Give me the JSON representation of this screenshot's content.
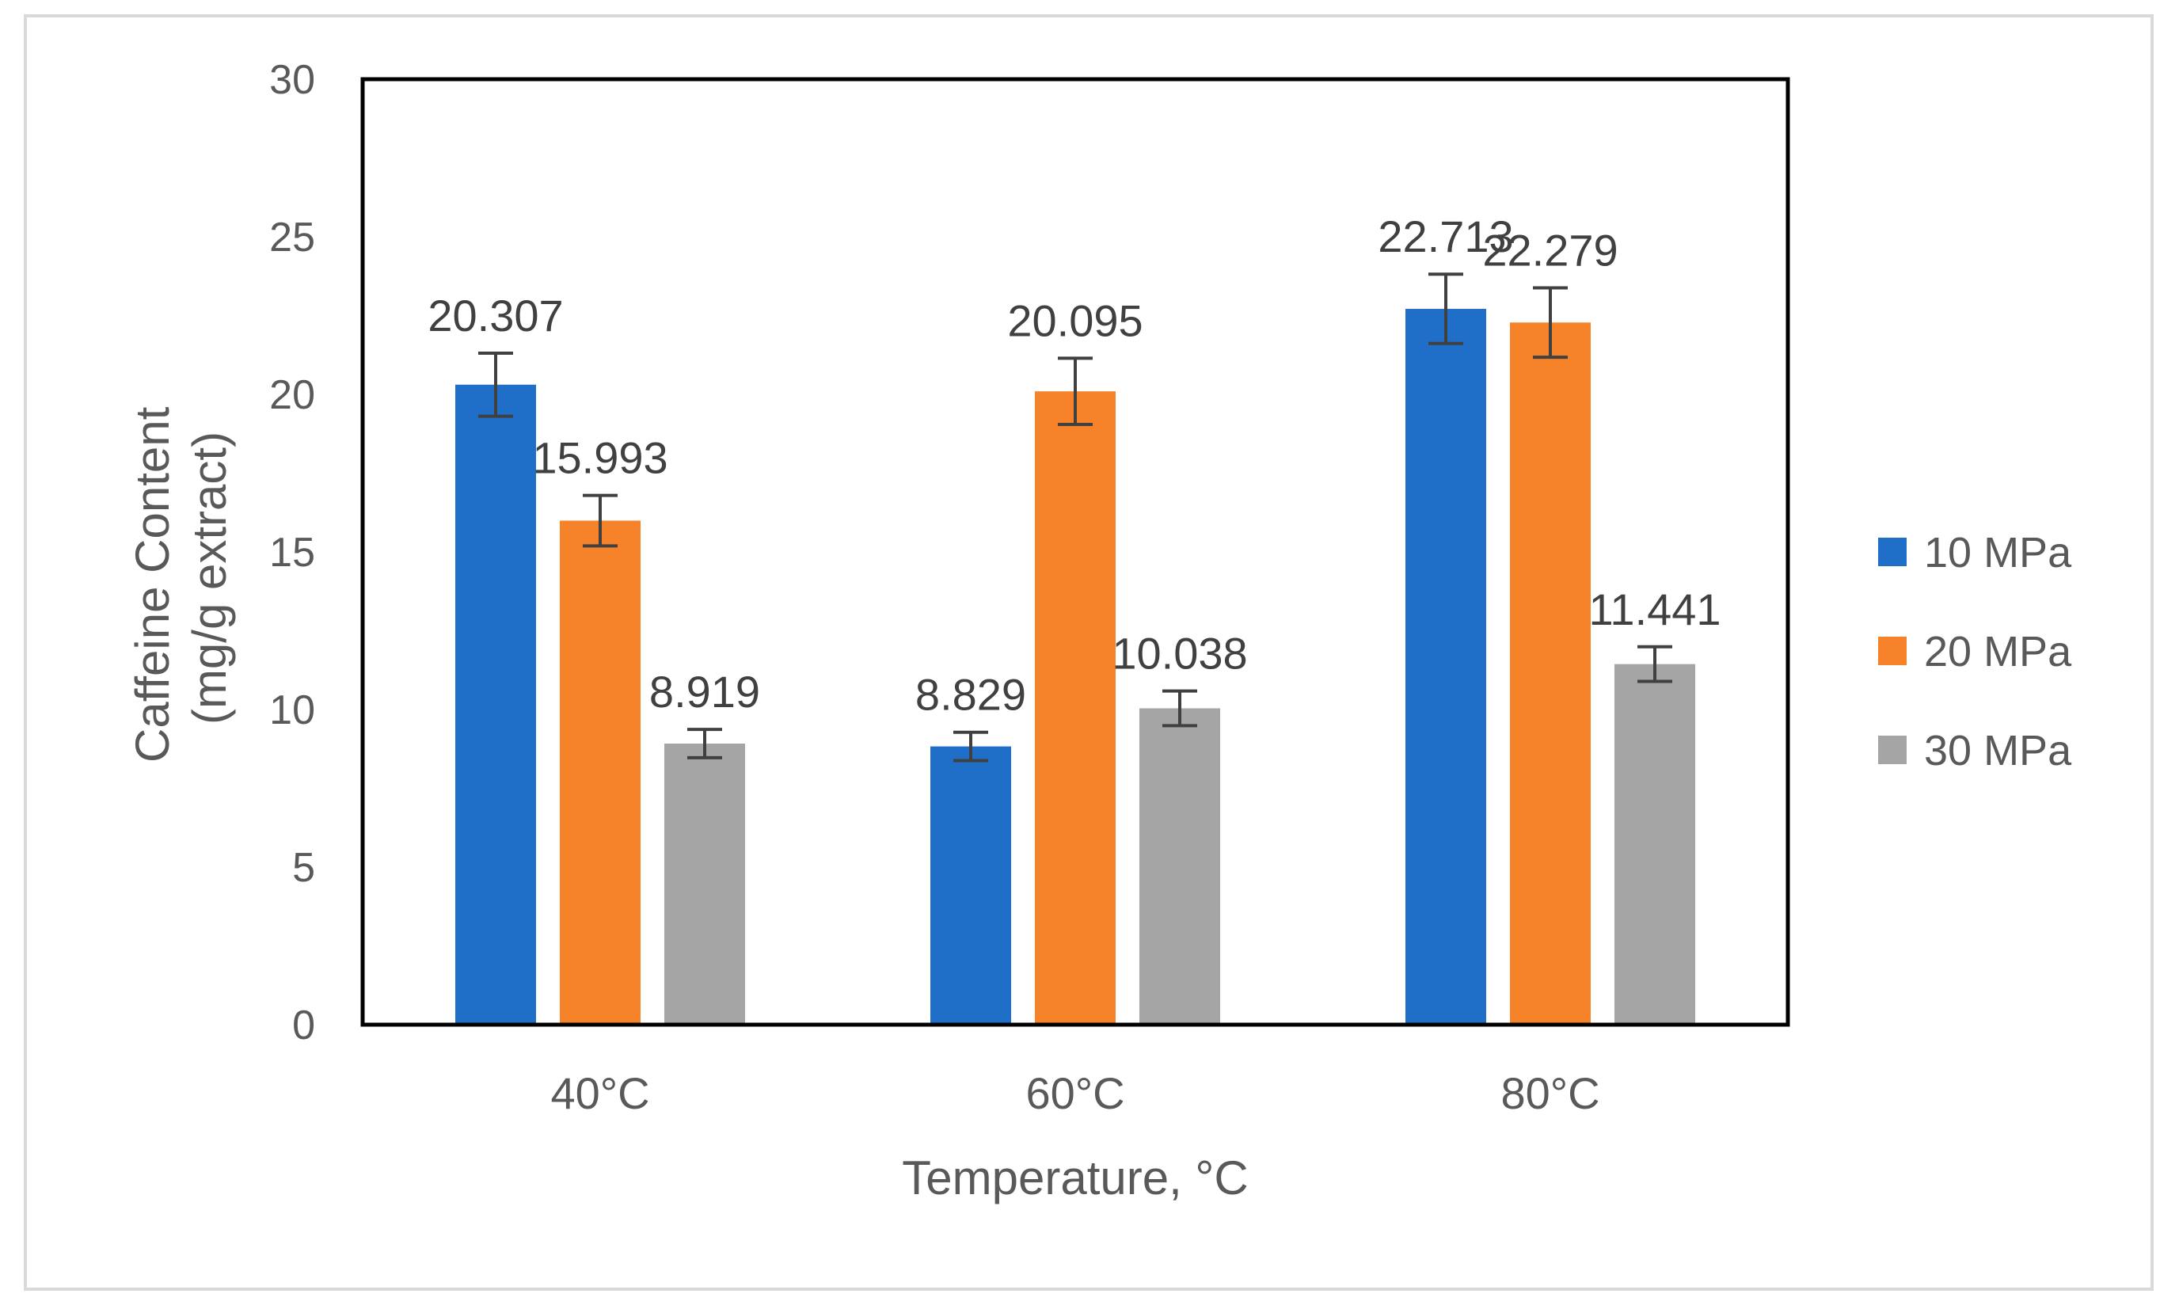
{
  "chart_data": {
    "type": "bar",
    "title": "",
    "xlabel": "Temperature, °C",
    "ylabel_line1": "Caffeine Content",
    "ylabel_line2": "(mg/g extract)",
    "categories": [
      "40°C",
      "60°C",
      "80°C"
    ],
    "ylim": [
      0,
      30
    ],
    "yticks": [
      0,
      5,
      10,
      15,
      20,
      25,
      30
    ],
    "grid": false,
    "legend_position": "right",
    "series": [
      {
        "name": "10 MPa",
        "color": "#1f6fc8",
        "values": [
          20.307,
          8.829,
          22.713
        ],
        "labels": [
          "20.307",
          "8.829",
          "22.713"
        ],
        "errors": [
          1.0,
          0.45,
          1.1
        ]
      },
      {
        "name": "20 MPa",
        "color": "#f6822a",
        "values": [
          15.993,
          20.095,
          22.279
        ],
        "labels": [
          "15.993",
          "20.095",
          "22.279"
        ],
        "errors": [
          0.8,
          1.05,
          1.1
        ]
      },
      {
        "name": "30 MPa",
        "color": "#a5a5a5",
        "values": [
          8.919,
          10.038,
          11.441
        ],
        "labels": [
          "8.919",
          "10.038",
          "11.441"
        ],
        "errors": [
          0.45,
          0.55,
          0.55
        ]
      }
    ]
  }
}
